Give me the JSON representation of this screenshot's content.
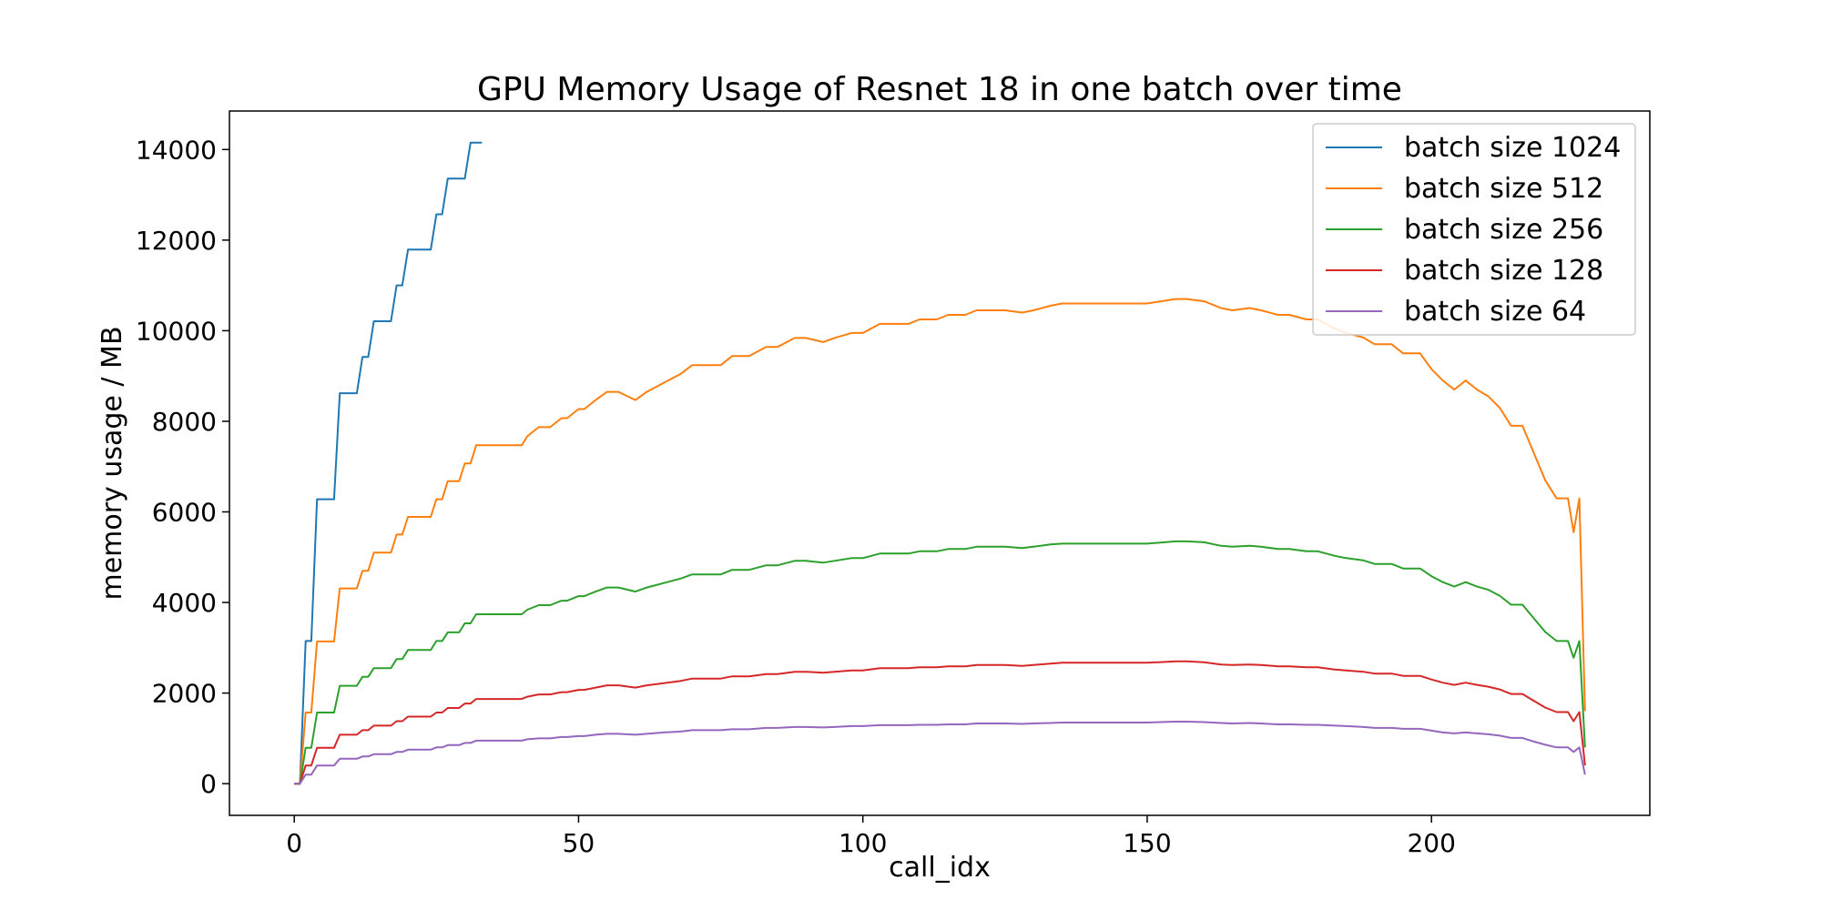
{
  "chart_data": {
    "type": "line",
    "title": "GPU Memory Usage of Resnet 18 in one batch over time",
    "xlabel": "call_idx",
    "ylabel": "memory usage / MB",
    "xlim": [
      -11.4,
      238.4
    ],
    "ylim": [
      -700,
      14850
    ],
    "xticks": [
      0,
      50,
      100,
      150,
      200
    ],
    "yticks": [
      0,
      2000,
      4000,
      6000,
      8000,
      10000,
      12000,
      14000
    ],
    "grid": false,
    "legend_position": "top-right",
    "series": [
      {
        "name": "batch size 1024",
        "color": "#1f77b4",
        "x": [
          0,
          1,
          2,
          3,
          4,
          5,
          6,
          7,
          8,
          9,
          10,
          11,
          12,
          13,
          14,
          15,
          16,
          17,
          18,
          19,
          20,
          21,
          22,
          23,
          24,
          25,
          26,
          27,
          28,
          29,
          30,
          31,
          32,
          33
        ],
        "y": [
          0,
          0,
          3150,
          3150,
          6280,
          6280,
          6280,
          6280,
          8620,
          8620,
          8620,
          8620,
          9420,
          9420,
          10210,
          10210,
          10210,
          10210,
          11000,
          11000,
          11790,
          11790,
          11790,
          11790,
          11790,
          12570,
          12570,
          13360,
          13360,
          13360,
          13360,
          14150,
          14150,
          14150
        ]
      },
      {
        "name": "batch size 512",
        "color": "#ff7f0e",
        "x": [
          0,
          1,
          2,
          3,
          4,
          5,
          6,
          7,
          8,
          9,
          10,
          11,
          12,
          13,
          14,
          15,
          16,
          17,
          18,
          19,
          20,
          22,
          24,
          25,
          26,
          27,
          28,
          29,
          30,
          31,
          32,
          33,
          36,
          40,
          41,
          43,
          45,
          47,
          48,
          50,
          51,
          53,
          55,
          57,
          60,
          62,
          65,
          68,
          70,
          75,
          77,
          80,
          83,
          85,
          88,
          90,
          93,
          95,
          98,
          100,
          103,
          105,
          108,
          110,
          113,
          115,
          118,
          120,
          123,
          125,
          128,
          130,
          133,
          135,
          138,
          140,
          145,
          150,
          155,
          157,
          160,
          163,
          165,
          168,
          170,
          173,
          175,
          178,
          180,
          183,
          185,
          188,
          190,
          193,
          195,
          198,
          200,
          202,
          204,
          206,
          208,
          210,
          212,
          214,
          216,
          218,
          220,
          222,
          224,
          225,
          226,
          227
        ],
        "y": [
          0,
          0,
          1570,
          1570,
          3140,
          3140,
          3140,
          3140,
          4310,
          4310,
          4310,
          4310,
          4700,
          4700,
          5100,
          5100,
          5100,
          5100,
          5500,
          5500,
          5890,
          5890,
          5890,
          6280,
          6280,
          6680,
          6680,
          6680,
          7070,
          7070,
          7470,
          7470,
          7470,
          7470,
          7670,
          7870,
          7870,
          8070,
          8070,
          8270,
          8270,
          8470,
          8650,
          8650,
          8470,
          8650,
          8850,
          9050,
          9240,
          9240,
          9440,
          9440,
          9640,
          9640,
          9840,
          9840,
          9750,
          9840,
          9950,
          9950,
          10150,
          10150,
          10150,
          10250,
          10250,
          10350,
          10350,
          10450,
          10450,
          10450,
          10400,
          10450,
          10550,
          10600,
          10600,
          10600,
          10600,
          10600,
          10700,
          10700,
          10650,
          10500,
          10450,
          10500,
          10450,
          10350,
          10350,
          10250,
          10250,
          10050,
          9950,
          9850,
          9700,
          9700,
          9500,
          9500,
          9150,
          8900,
          8700,
          8900,
          8700,
          8550,
          8300,
          7900,
          7900,
          7300,
          6700,
          6300,
          6300,
          5550,
          6300,
          1600
        ]
      },
      {
        "name": "batch size 256",
        "color": "#2ca02c",
        "x": [
          0,
          1,
          2,
          3,
          4,
          5,
          6,
          7,
          8,
          9,
          10,
          11,
          12,
          13,
          14,
          15,
          16,
          17,
          18,
          19,
          20,
          22,
          24,
          25,
          26,
          27,
          28,
          29,
          30,
          31,
          32,
          33,
          36,
          40,
          41,
          43,
          45,
          47,
          48,
          50,
          51,
          53,
          55,
          57,
          60,
          62,
          65,
          68,
          70,
          75,
          77,
          80,
          83,
          85,
          88,
          90,
          93,
          95,
          98,
          100,
          103,
          105,
          108,
          110,
          113,
          115,
          118,
          120,
          123,
          125,
          128,
          130,
          133,
          135,
          138,
          140,
          145,
          150,
          155,
          157,
          160,
          163,
          165,
          168,
          170,
          173,
          175,
          178,
          180,
          183,
          185,
          188,
          190,
          193,
          195,
          198,
          200,
          202,
          204,
          206,
          208,
          210,
          212,
          214,
          216,
          218,
          220,
          222,
          224,
          225,
          226,
          227
        ],
        "y": [
          0,
          0,
          790,
          790,
          1570,
          1570,
          1570,
          1570,
          2160,
          2160,
          2160,
          2160,
          2360,
          2360,
          2550,
          2550,
          2550,
          2550,
          2750,
          2750,
          2950,
          2950,
          2950,
          3150,
          3150,
          3340,
          3340,
          3340,
          3540,
          3540,
          3740,
          3740,
          3740,
          3740,
          3840,
          3940,
          3940,
          4040,
          4040,
          4140,
          4140,
          4240,
          4330,
          4330,
          4240,
          4330,
          4430,
          4530,
          4620,
          4620,
          4720,
          4720,
          4820,
          4820,
          4920,
          4920,
          4880,
          4920,
          4980,
          4980,
          5080,
          5080,
          5080,
          5130,
          5130,
          5180,
          5180,
          5230,
          5230,
          5230,
          5200,
          5230,
          5280,
          5300,
          5300,
          5300,
          5300,
          5300,
          5350,
          5350,
          5330,
          5250,
          5230,
          5250,
          5230,
          5180,
          5180,
          5130,
          5130,
          5030,
          4980,
          4930,
          4850,
          4850,
          4750,
          4750,
          4580,
          4450,
          4350,
          4450,
          4350,
          4280,
          4150,
          3950,
          3950,
          3650,
          3350,
          3150,
          3150,
          2780,
          3150,
          800
        ]
      },
      {
        "name": "batch size 128",
        "color": "#d62728",
        "x": [
          0,
          1,
          2,
          3,
          4,
          5,
          6,
          7,
          8,
          9,
          10,
          11,
          12,
          13,
          14,
          15,
          16,
          17,
          18,
          19,
          20,
          22,
          24,
          25,
          26,
          27,
          28,
          29,
          30,
          31,
          32,
          33,
          36,
          40,
          41,
          43,
          45,
          47,
          48,
          50,
          51,
          53,
          55,
          57,
          60,
          62,
          65,
          68,
          70,
          75,
          77,
          80,
          83,
          85,
          88,
          90,
          93,
          95,
          98,
          100,
          103,
          105,
          108,
          110,
          113,
          115,
          118,
          120,
          123,
          125,
          128,
          130,
          133,
          135,
          138,
          140,
          145,
          150,
          155,
          157,
          160,
          163,
          165,
          168,
          170,
          173,
          175,
          178,
          180,
          183,
          185,
          188,
          190,
          193,
          195,
          198,
          200,
          202,
          204,
          206,
          208,
          210,
          212,
          214,
          216,
          218,
          220,
          222,
          224,
          225,
          226,
          227
        ],
        "y": [
          0,
          0,
          400,
          400,
          790,
          790,
          790,
          790,
          1080,
          1080,
          1080,
          1080,
          1180,
          1180,
          1280,
          1280,
          1280,
          1280,
          1380,
          1380,
          1480,
          1480,
          1480,
          1570,
          1570,
          1670,
          1670,
          1670,
          1770,
          1770,
          1870,
          1870,
          1870,
          1870,
          1920,
          1970,
          1970,
          2020,
          2020,
          2070,
          2070,
          2120,
          2170,
          2170,
          2120,
          2170,
          2220,
          2270,
          2320,
          2320,
          2370,
          2370,
          2420,
          2420,
          2470,
          2470,
          2450,
          2470,
          2500,
          2500,
          2550,
          2550,
          2550,
          2570,
          2570,
          2590,
          2590,
          2620,
          2620,
          2620,
          2600,
          2620,
          2650,
          2670,
          2670,
          2670,
          2670,
          2670,
          2700,
          2700,
          2680,
          2630,
          2620,
          2630,
          2620,
          2590,
          2590,
          2570,
          2570,
          2520,
          2500,
          2470,
          2430,
          2430,
          2380,
          2380,
          2300,
          2230,
          2180,
          2230,
          2180,
          2140,
          2080,
          1980,
          1980,
          1830,
          1680,
          1580,
          1580,
          1380,
          1580,
          400
        ]
      },
      {
        "name": "batch size 64",
        "color": "#9467bd",
        "x": [
          0,
          1,
          2,
          3,
          4,
          5,
          6,
          7,
          8,
          9,
          10,
          11,
          12,
          13,
          14,
          15,
          16,
          17,
          18,
          19,
          20,
          22,
          24,
          25,
          26,
          27,
          28,
          29,
          30,
          31,
          32,
          33,
          36,
          40,
          41,
          43,
          45,
          47,
          48,
          50,
          51,
          53,
          55,
          57,
          60,
          62,
          65,
          68,
          70,
          75,
          77,
          80,
          83,
          85,
          88,
          90,
          93,
          95,
          98,
          100,
          103,
          105,
          108,
          110,
          113,
          115,
          118,
          120,
          123,
          125,
          128,
          130,
          133,
          135,
          138,
          140,
          145,
          150,
          155,
          157,
          160,
          163,
          165,
          168,
          170,
          173,
          175,
          178,
          180,
          183,
          185,
          188,
          190,
          193,
          195,
          198,
          200,
          202,
          204,
          206,
          208,
          210,
          212,
          214,
          216,
          218,
          220,
          222,
          224,
          225,
          226,
          227
        ],
        "y": [
          0,
          0,
          200,
          200,
          400,
          400,
          400,
          400,
          550,
          550,
          550,
          550,
          600,
          600,
          650,
          650,
          650,
          650,
          700,
          700,
          750,
          750,
          750,
          800,
          800,
          850,
          850,
          850,
          900,
          900,
          950,
          950,
          950,
          950,
          980,
          1000,
          1000,
          1030,
          1030,
          1050,
          1050,
          1080,
          1100,
          1100,
          1080,
          1100,
          1130,
          1150,
          1180,
          1180,
          1200,
          1200,
          1230,
          1230,
          1250,
          1250,
          1240,
          1250,
          1270,
          1270,
          1290,
          1290,
          1290,
          1300,
          1300,
          1310,
          1310,
          1330,
          1330,
          1330,
          1320,
          1330,
          1340,
          1350,
          1350,
          1350,
          1350,
          1350,
          1370,
          1370,
          1360,
          1340,
          1330,
          1340,
          1330,
          1310,
          1310,
          1300,
          1300,
          1280,
          1270,
          1250,
          1230,
          1230,
          1210,
          1210,
          1170,
          1130,
          1110,
          1130,
          1110,
          1090,
          1060,
          1010,
          1010,
          930,
          860,
          800,
          800,
          700,
          800,
          200
        ]
      }
    ]
  }
}
